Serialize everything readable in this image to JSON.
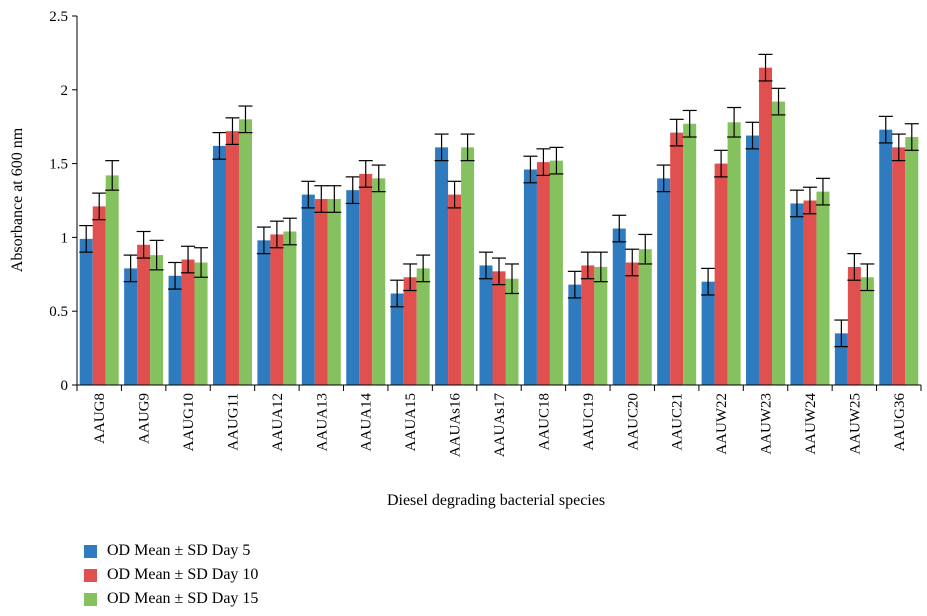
{
  "chart_data": {
    "type": "bar",
    "xlabel": "Diesel degrading bacterial species",
    "ylabel": "Absorbance at 600 nm",
    "ylim": [
      0,
      2.5
    ],
    "yticks": [
      "0",
      "0.5",
      "1",
      "1.5",
      "2",
      "2.5"
    ],
    "ytick_values": [
      0,
      0.5,
      1,
      1.5,
      2,
      2.5
    ],
    "categories": [
      "AAUG8",
      "AAUG9",
      "AAUG10",
      "AAUG11",
      "AAUA12",
      "AAUA13",
      "AAUA14",
      "AAUA15",
      "AAUAs16",
      "AAUAs17",
      "AAUC18",
      "AAUC19",
      "AAUC20",
      "AAUC21",
      "AAUW22",
      "AAUW23",
      "AAUW24",
      "AAUW25",
      "AAUG36"
    ],
    "series": [
      {
        "name": "OD Mean ± SD Day 5",
        "color": "#2f7bbf",
        "values": [
          0.99,
          0.79,
          0.74,
          1.62,
          0.98,
          1.29,
          1.32,
          0.62,
          1.61,
          0.81,
          1.46,
          0.68,
          1.06,
          1.4,
          0.7,
          1.69,
          1.23,
          0.35,
          1.73
        ],
        "errors": [
          0.09,
          0.09,
          0.09,
          0.09,
          0.09,
          0.09,
          0.09,
          0.09,
          0.09,
          0.09,
          0.09,
          0.09,
          0.09,
          0.09,
          0.09,
          0.09,
          0.09,
          0.09,
          0.09
        ]
      },
      {
        "name": "OD Mean ± SD Day 10",
        "color": "#e0504f",
        "values": [
          1.21,
          0.95,
          0.85,
          1.72,
          1.02,
          1.26,
          1.43,
          0.73,
          1.29,
          0.77,
          1.51,
          0.81,
          0.83,
          1.71,
          1.5,
          2.15,
          1.25,
          0.8,
          1.61
        ],
        "errors": [
          0.09,
          0.09,
          0.09,
          0.09,
          0.09,
          0.09,
          0.09,
          0.09,
          0.09,
          0.09,
          0.09,
          0.09,
          0.09,
          0.09,
          0.09,
          0.09,
          0.09,
          0.09,
          0.09
        ]
      },
      {
        "name": "OD Mean ± SD Day 15",
        "color": "#86c160",
        "values": [
          1.42,
          0.88,
          0.83,
          1.8,
          1.04,
          1.26,
          1.4,
          0.79,
          1.61,
          0.72,
          1.52,
          0.8,
          0.92,
          1.77,
          1.78,
          1.92,
          1.31,
          0.73,
          1.68
        ],
        "errors": [
          0.1,
          0.1,
          0.1,
          0.09,
          0.09,
          0.09,
          0.09,
          0.09,
          0.09,
          0.1,
          0.09,
          0.1,
          0.1,
          0.09,
          0.1,
          0.09,
          0.09,
          0.09,
          0.09
        ]
      }
    ],
    "grid": false,
    "legend_position": "bottom-left"
  }
}
